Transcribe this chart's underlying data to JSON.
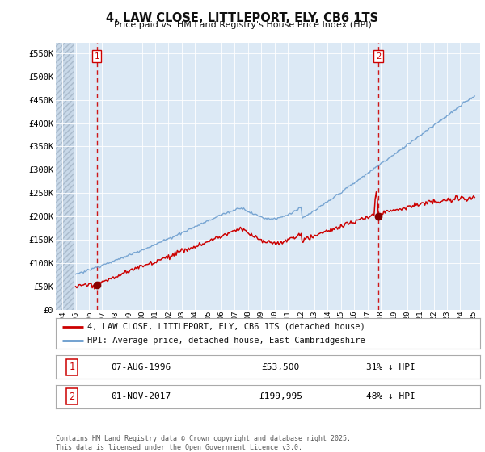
{
  "title": "4, LAW CLOSE, LITTLEPORT, ELY, CB6 1TS",
  "subtitle": "Price paid vs. HM Land Registry's House Price Index (HPI)",
  "red_label": "4, LAW CLOSE, LITTLEPORT, ELY, CB6 1TS (detached house)",
  "blue_label": "HPI: Average price, detached house, East Cambridgeshire",
  "transaction1_date": "07-AUG-1996",
  "transaction1_price": "£53,500",
  "transaction1_hpi": "31% ↓ HPI",
  "transaction1_year": 1996.58,
  "transaction1_value": 53500,
  "transaction2_date": "01-NOV-2017",
  "transaction2_price": "£199,995",
  "transaction2_hpi": "48% ↓ HPI",
  "transaction2_year": 2017.83,
  "transaction2_value": 199995,
  "ylim_min": 0,
  "ylim_max": 572000,
  "xmin": 1993.5,
  "xmax": 2025.5,
  "background_color": "#dce9f5",
  "grid_color": "#ffffff",
  "red_line_color": "#cc0000",
  "blue_line_color": "#6699cc",
  "dashed_line_color": "#cc0000",
  "footer": "Contains HM Land Registry data © Crown copyright and database right 2025.\nThis data is licensed under the Open Government Licence v3.0.",
  "yticks": [
    0,
    50000,
    100000,
    150000,
    200000,
    250000,
    300000,
    350000,
    400000,
    450000,
    500000,
    550000
  ],
  "ytick_labels": [
    "£0",
    "£50K",
    "£100K",
    "£150K",
    "£200K",
    "£250K",
    "£300K",
    "£350K",
    "£400K",
    "£450K",
    "£500K",
    "£550K"
  ]
}
